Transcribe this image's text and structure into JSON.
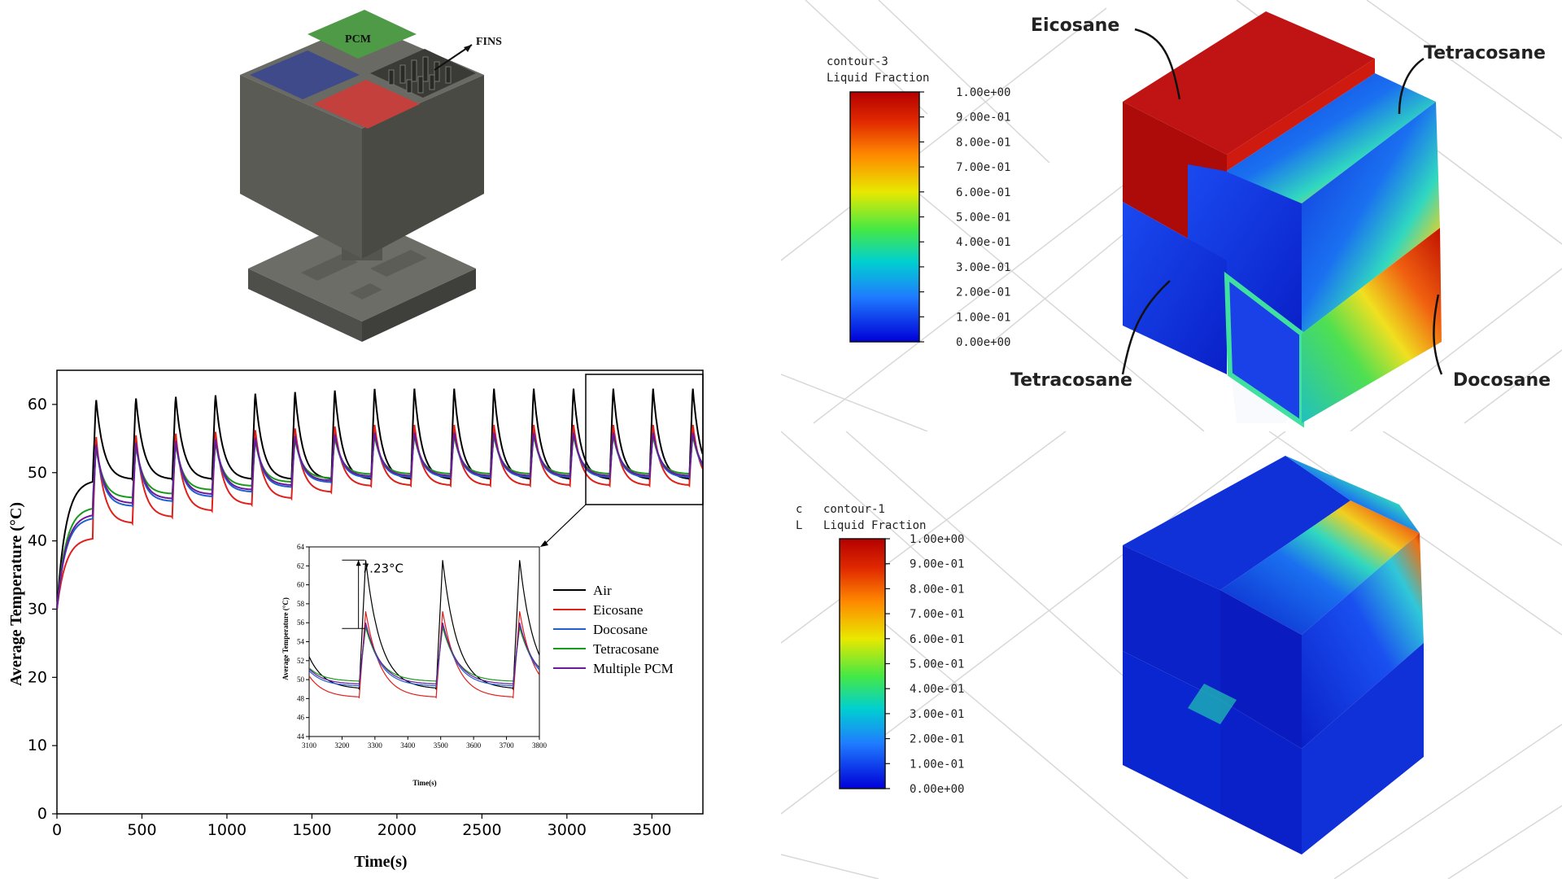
{
  "cad_model": {
    "pcm_label": "PCM",
    "fins_label": "FINS",
    "colors": {
      "body": "#5b5b55",
      "blue": "#3f4a8a",
      "green": "#4e9a47",
      "red": "#c4403c"
    }
  },
  "chart_data": [
    {
      "type": "line",
      "xlabel": "Time(s)",
      "ylabel": "Average Temperature (°C)",
      "xlim": [
        0,
        3800
      ],
      "ylim": [
        0,
        65
      ],
      "x_ticks": [
        "0",
        "500",
        "1000",
        "1500",
        "2000",
        "2500",
        "3000",
        "3500"
      ],
      "y_ticks": [
        "0",
        "10",
        "20",
        "30",
        "40",
        "50",
        "60"
      ],
      "cycle": {
        "period": 234,
        "heating": 20,
        "first_peak": 230
      },
      "series": [
        {
          "name": "Air",
          "color": "#000000",
          "start": 30,
          "plateau": 49.0,
          "peak": 62.6,
          "base": 49.0
        },
        {
          "name": "Eicosane",
          "color": "#e0201b",
          "start": 30,
          "plateau": 40.5,
          "peak": 57.2,
          "base": 48.1
        },
        {
          "name": "Docosane",
          "color": "#1f5fd0",
          "start": 30,
          "plateau": 43.5,
          "peak": 55.8,
          "base": 49.3
        },
        {
          "name": "Tetracosane",
          "color": "#1a9a1a",
          "start": 30,
          "plateau": 45.0,
          "peak": 55.5,
          "base": 49.8
        },
        {
          "name": "Multiple PCM",
          "color": "#6a1a9a",
          "start": 30,
          "plateau": 44.0,
          "peak": 56.0,
          "base": 49.5
        }
      ],
      "legend_position": "center-right"
    },
    {
      "type": "line",
      "role": "inset",
      "xlabel": "Time(s)",
      "ylabel": "Average Temperature (°C)",
      "xlim": [
        3100,
        3800
      ],
      "ylim": [
        44,
        64
      ],
      "x_ticks": [
        "3100",
        "3200",
        "3300",
        "3400",
        "3500",
        "3600",
        "3700",
        "3800"
      ],
      "y_ticks": [
        "44",
        "46",
        "48",
        "50",
        "52",
        "54",
        "56",
        "58",
        "60",
        "62",
        "64"
      ],
      "annotation": "7.23°C",
      "annotation_values": {
        "from": 55.4,
        "to": 62.6
      }
    }
  ],
  "contour_top": {
    "title": "contour-3",
    "subtitle": "Liquid Fraction",
    "scale": [
      "1.00e+00",
      "9.00e-01",
      "8.00e-01",
      "7.00e-01",
      "6.00e-01",
      "5.00e-01",
      "4.00e-01",
      "3.00e-01",
      "2.00e-01",
      "1.00e-01",
      "0.00e+00"
    ],
    "labels": {
      "top_left": "Eicosane",
      "top_right": "Tetracosane",
      "bottom_left": "Tetracosane",
      "bottom_right": "Docosane"
    }
  },
  "contour_bottom": {
    "title": "contour-1",
    "subtitle": "Liquid Fraction",
    "side_letters": [
      "c",
      "L"
    ],
    "scale": [
      "1.00e+00",
      "9.00e-01",
      "8.00e-01",
      "7.00e-01",
      "6.00e-01",
      "5.00e-01",
      "4.00e-01",
      "3.00e-01",
      "2.00e-01",
      "1.00e-01",
      "0.00e+00"
    ]
  }
}
